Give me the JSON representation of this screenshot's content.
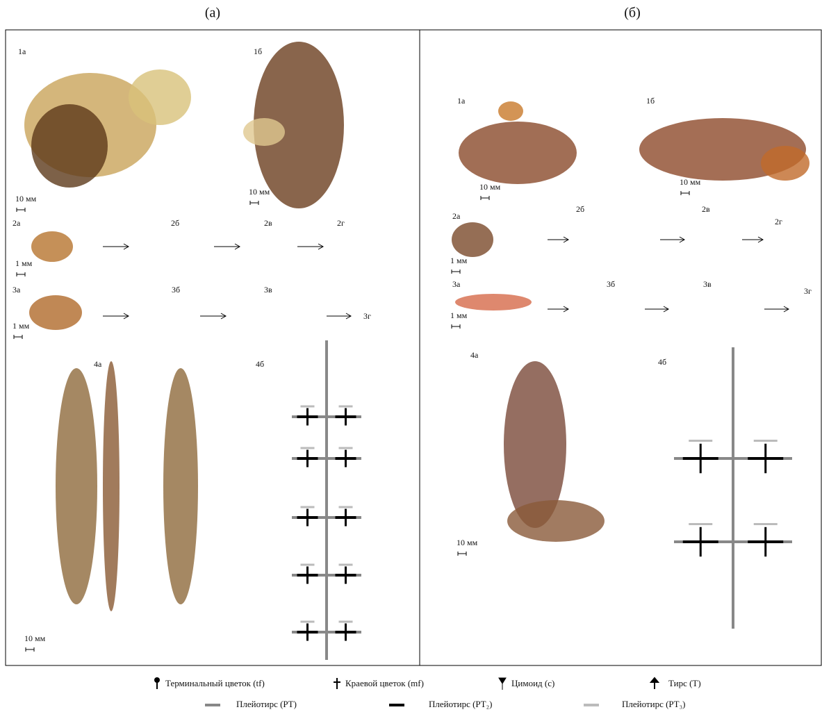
{
  "panels": [
    {
      "label": "(а)",
      "labels": [
        "1а",
        "1б",
        "2а",
        "2б",
        "2в",
        "2г",
        "3а",
        "3б",
        "3в",
        "3г",
        "4а",
        "4б"
      ],
      "scales": [
        "10 мм",
        "10 мм",
        "1 мм",
        "1 мм",
        "10 мм"
      ]
    },
    {
      "label": "(б)",
      "labels": [
        "1а",
        "1б",
        "2а",
        "2б",
        "2в",
        "2г",
        "3а",
        "3б",
        "3в",
        "3г",
        "4а",
        "4б"
      ],
      "scales": [
        "10 мм",
        "10 мм",
        "1 мм",
        "1 мм",
        "10 мм"
      ]
    }
  ],
  "legend": {
    "symbols": [
      "Терминальный цветок (tf)",
      "Краевой цветок (mf)",
      "Цимоид (c)",
      "Тирс (T)"
    ],
    "lines": [
      "Плейотирс (PT)",
      "Плейотирс (PT₂)",
      "Плейотирс (PT₃)"
    ]
  }
}
